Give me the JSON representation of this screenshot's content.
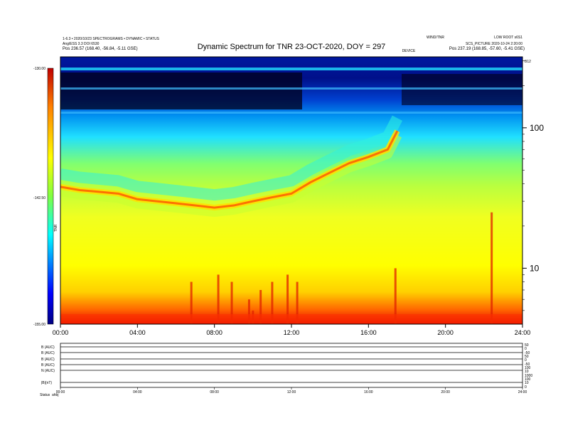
{
  "chart_data": {
    "type": "heatmap",
    "title": "Dynamic Spectrum for TNR 23-OCT-2020, DOY = 297",
    "header_left_line1": "1-6.3 • 2020/10/23 SPECTROGRAMS • DYNAMIC • STATUS",
    "header_left_line2": "Ang/ESS 3.3 DOI 6530",
    "header_left_pos": "Pos   236.57 (168.40, -56.84, -5.11 GSE)",
    "header_right_line1": "WIND/TNR",
    "header_right_line2": "LOW ROOT s6S1",
    "header_right_line3": "SCS_PICTURE 2020-10-24 2:20:00",
    "header_right_pos": "Pos   237.19 (168.85, -57.60, -5.41 GSE)",
    "header_right_marker": "B12",
    "top_marker": "DEVICE",
    "x_axis": {
      "ticks": [
        "00:00",
        "04:00",
        "08:00",
        "12:00",
        "16:00",
        "20:00",
        "24:00"
      ],
      "range_hours": [
        0,
        24
      ]
    },
    "y_axis_right": {
      "scale": "log",
      "range_khz": [
        4,
        320
      ],
      "ticks": [
        100,
        10
      ]
    },
    "colorbar": {
      "label": "TNR",
      "ticks": [
        "-130.00",
        "-142.50",
        "-155.00"
      ],
      "range": [
        -155,
        -130
      ],
      "colors": [
        "#c00000",
        "#ff2000",
        "#ff8000",
        "#ffff00",
        "#80ff40",
        "#00ffff",
        "#0060ff",
        "#000080"
      ]
    },
    "panel_labels": [
      "B (AUC)",
      "B (AUC)",
      "B (AUC)",
      "B (AUC)",
      "N (AUC)",
      "|B|(nT)"
    ],
    "panel_right_ticks": [
      "50",
      "0",
      "-50",
      "50",
      "0",
      "-50",
      "100",
      "10",
      "1000",
      "100",
      "10",
      "0"
    ],
    "bottom_ticks": [
      "00:00",
      "04:00",
      "08:00",
      "12:00",
      "16:00",
      "20:00",
      "24:00"
    ],
    "bottom_left_labels": [
      "Status",
      "ahbj"
    ],
    "series": [
      {
        "name": "emission ridge",
        "x_hours": [
          0,
          1,
          2,
          3,
          4,
          5,
          6,
          7,
          8,
          9,
          10,
          11,
          12,
          13,
          14,
          15,
          16,
          17,
          17.5
        ],
        "y_khz": [
          38,
          36,
          35,
          34,
          31,
          30,
          29,
          28,
          27,
          28,
          30,
          32,
          34,
          41,
          48,
          56,
          62,
          70,
          95
        ]
      },
      {
        "name": "type III bursts",
        "x_hours": [
          6.8,
          8.2,
          8.9,
          9.8,
          10.0,
          10.4,
          11.0,
          11.8,
          12.3,
          17.4,
          22.4
        ],
        "y_khz": [
          8,
          9,
          8,
          6,
          5,
          7,
          8,
          9,
          8,
          10,
          25
        ]
      }
    ]
  }
}
